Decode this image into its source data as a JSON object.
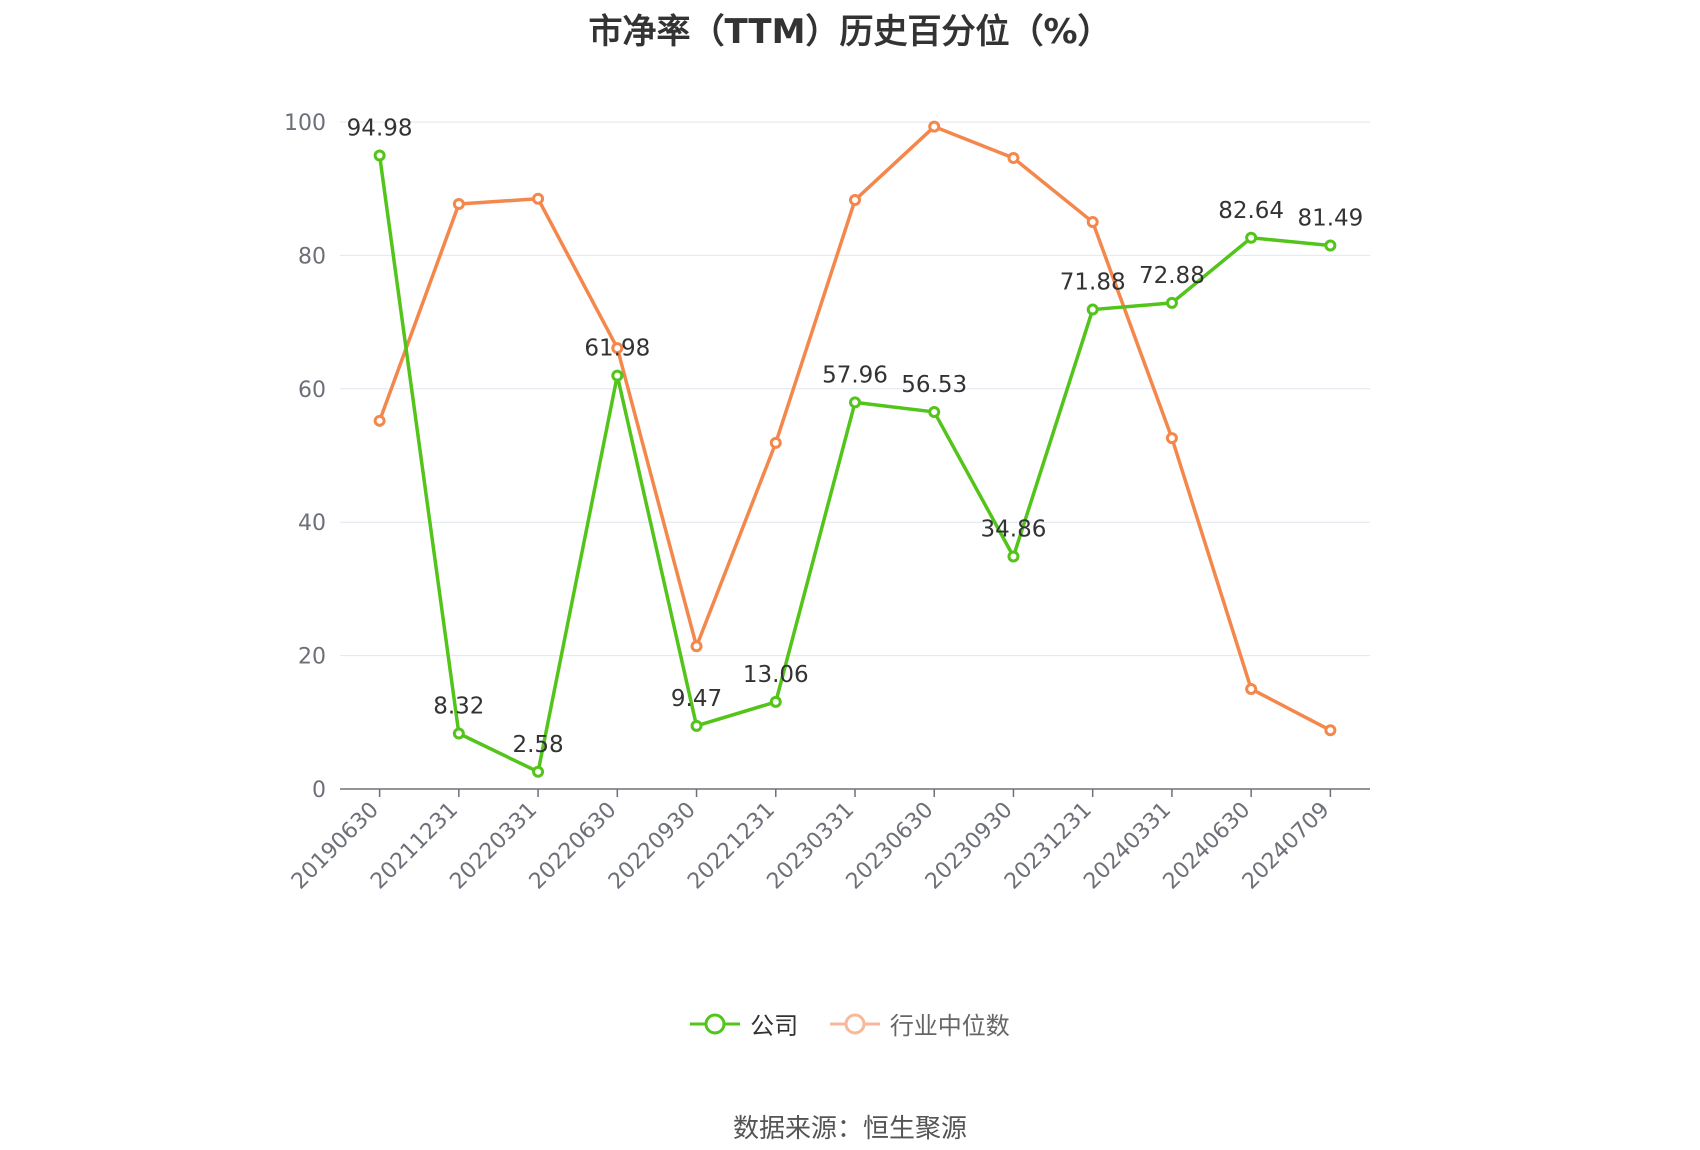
{
  "chart_data": {
    "type": "line",
    "title": "市净率（TTM）历史百分位（%）",
    "categories": [
      "20190630",
      "20211231",
      "20220331",
      "20220630",
      "20220930",
      "20221231",
      "20230331",
      "20230630",
      "20230930",
      "20231231",
      "20240331",
      "20240630",
      "20240709"
    ],
    "ylim": [
      0,
      100
    ],
    "yticks": [
      "0",
      "20",
      "40",
      "60",
      "80",
      "100"
    ],
    "grid": true,
    "legend_position": "bottom",
    "series": [
      {
        "name": "公司",
        "color": "#52c41a",
        "values": [
          94.98,
          8.32,
          2.58,
          61.98,
          9.47,
          13.06,
          57.96,
          56.53,
          34.86,
          71.88,
          72.88,
          82.64,
          81.49
        ],
        "labels": [
          "94.98",
          "8.32",
          "2.58",
          "61.98",
          "9.47",
          "13.06",
          "57.96",
          "56.53",
          "34.86",
          "71.88",
          "72.88",
          "82.64",
          "81.49"
        ]
      },
      {
        "name": "行业中位数",
        "color": "#f4874b",
        "values": [
          55.2,
          87.7,
          88.5,
          66.1,
          21.4,
          51.9,
          88.3,
          99.3,
          94.6,
          85.0,
          52.6,
          15.0,
          8.8
        ]
      }
    ]
  },
  "legend": {
    "company": "公司",
    "industry": "行业中位数"
  },
  "source": "数据来源：恒生聚源"
}
